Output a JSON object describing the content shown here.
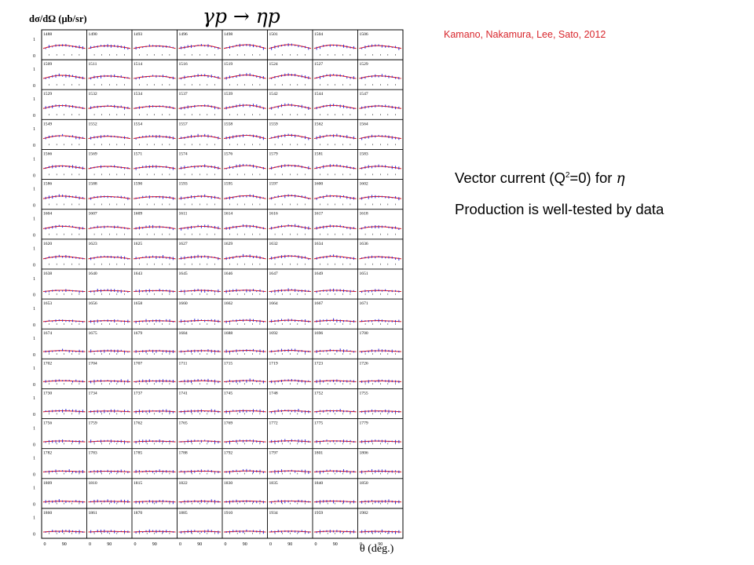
{
  "figure": {
    "ylabel": "dσ/dΩ (μb/sr)",
    "xlabel": "θ (deg.)",
    "reaction": "γp → ηp",
    "x_ticks": [
      "0",
      "90"
    ],
    "y_ticks": [
      "0",
      "1"
    ],
    "colors": {
      "model": "#e0202a",
      "data": "#2a2ad8",
      "axis": "#000000"
    },
    "panel_labels": [
      [
        "1488",
        "1490",
        "1493",
        "1496",
        "1498",
        "1501",
        "1504",
        "1506"
      ],
      [
        "1509",
        "1511",
        "1514",
        "1516",
        "1519",
        "1524",
        "1527",
        "1529"
      ],
      [
        "1529",
        "1532",
        "1534",
        "1537",
        "1539",
        "1542",
        "1544",
        "1547"
      ],
      [
        "1549",
        "1552",
        "1554",
        "1557",
        "1558",
        "1559",
        "1562",
        "1564"
      ],
      [
        "1566",
        "1569",
        "1571",
        "1574",
        "1576",
        "1579",
        "1581",
        "1583"
      ],
      [
        "1586",
        "1588",
        "1590",
        "1593",
        "1595",
        "1597",
        "1600",
        "1602"
      ],
      [
        "1604",
        "1607",
        "1609",
        "1611",
        "1614",
        "1616",
        "1617",
        "1618"
      ],
      [
        "1620",
        "1623",
        "1625",
        "1627",
        "1629",
        "1632",
        "1634",
        "1636"
      ],
      [
        "1638",
        "1640",
        "1643",
        "1645",
        "1646",
        "1647",
        "1649",
        "1651"
      ],
      [
        "1653",
        "1656",
        "1658",
        "1660",
        "1662",
        "1664",
        "1667",
        "1671"
      ],
      [
        "1674",
        "1675",
        "1679",
        "1684",
        "1688",
        "1692",
        "1696",
        "1700"
      ],
      [
        "1702",
        "1704",
        "1707",
        "1711",
        "1715",
        "1719",
        "1723",
        "1726"
      ],
      [
        "1730",
        "1734",
        "1737",
        "1741",
        "1745",
        "1748",
        "1752",
        "1755"
      ],
      [
        "1756",
        "1759",
        "1762",
        "1765",
        "1769",
        "1772",
        "1775",
        "1779"
      ],
      [
        "1782",
        "1783",
        "1785",
        "1788",
        "1792",
        "1797",
        "1801",
        "1806"
      ],
      [
        "1809",
        "1810",
        "1815",
        "1822",
        "1830",
        "1835",
        "1840",
        "1850"
      ],
      [
        "1860",
        "1861",
        "1870",
        "1885",
        "1910",
        "1934",
        "1959",
        "1982"
      ]
    ]
  },
  "annotations": {
    "citation": "Kamano,  Nakamura, Lee, Sato, 2012",
    "note1_pre": "Vector current (Q",
    "note1_sup": "2",
    "note1_post": "=0) for ",
    "note1_symbol": "η",
    "note2": "Production is well-tested by data"
  }
}
